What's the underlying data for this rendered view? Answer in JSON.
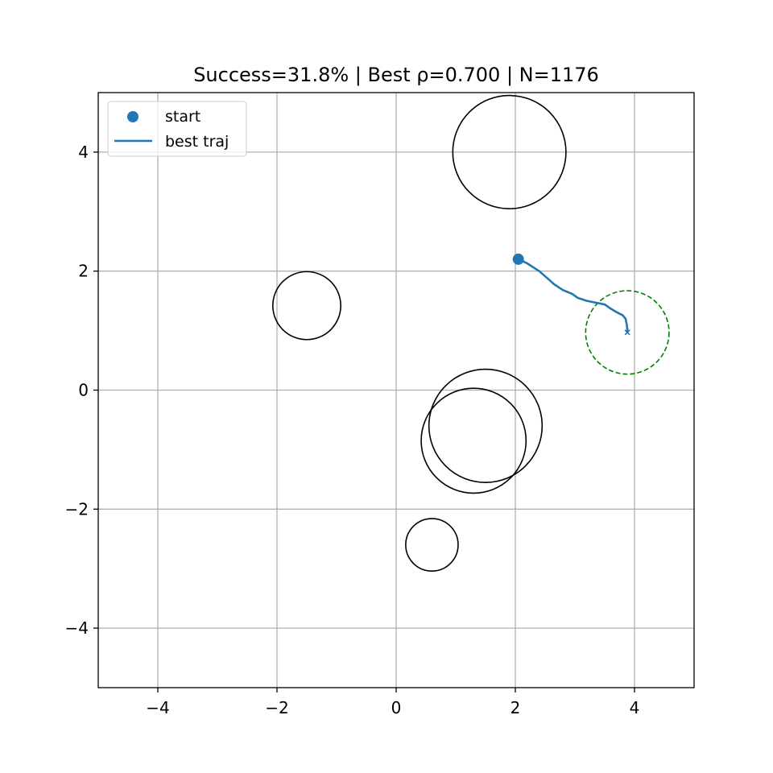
{
  "chart_data": {
    "type": "scatter",
    "title": "Success=31.8% | Best ρ=0.700 | N=1176",
    "xlabel": "",
    "ylabel": "",
    "xlim": [
      -5,
      5
    ],
    "ylim": [
      -5,
      5
    ],
    "x_ticks": [
      -4,
      -2,
      0,
      2,
      4
    ],
    "y_ticks": [
      -4,
      -2,
      0,
      2,
      4
    ],
    "x_tick_labels": [
      "−4",
      "−2",
      "0",
      "2",
      "4"
    ],
    "y_tick_labels": [
      "−4",
      "−2",
      "0",
      "2",
      "4"
    ],
    "grid": true,
    "legend_position": "top-left",
    "legend": [
      {
        "label": "start",
        "marker": "dot",
        "color": "#1f77b4"
      },
      {
        "label": "best traj",
        "marker": "line",
        "color": "#1f77b4"
      }
    ],
    "start": {
      "x": 2.05,
      "y": 2.2,
      "color": "#1f77b4"
    },
    "best_traj": {
      "color": "#1f77b4",
      "points": [
        [
          2.05,
          2.2
        ],
        [
          2.2,
          2.13
        ],
        [
          2.4,
          2.0
        ],
        [
          2.55,
          1.87
        ],
        [
          2.65,
          1.78
        ],
        [
          2.8,
          1.68
        ],
        [
          2.95,
          1.62
        ],
        [
          3.05,
          1.55
        ],
        [
          3.2,
          1.5
        ],
        [
          3.4,
          1.46
        ],
        [
          3.5,
          1.44
        ],
        [
          3.6,
          1.37
        ],
        [
          3.7,
          1.31
        ],
        [
          3.8,
          1.26
        ],
        [
          3.85,
          1.2
        ],
        [
          3.87,
          1.1
        ],
        [
          3.88,
          1.02
        ],
        [
          3.88,
          0.97
        ]
      ],
      "end_marker": "x"
    },
    "goal": {
      "x": 3.88,
      "y": 0.97,
      "r": 0.7,
      "color": "#008000",
      "style": "dashed"
    },
    "obstacles": [
      {
        "x": 1.9,
        "y": 4.0,
        "r": 0.95
      },
      {
        "x": -1.5,
        "y": 1.42,
        "r": 0.57
      },
      {
        "x": 1.5,
        "y": -0.6,
        "r": 0.95
      },
      {
        "x": 1.3,
        "y": -0.85,
        "r": 0.88
      },
      {
        "x": 0.6,
        "y": -2.6,
        "r": 0.44
      }
    ]
  }
}
